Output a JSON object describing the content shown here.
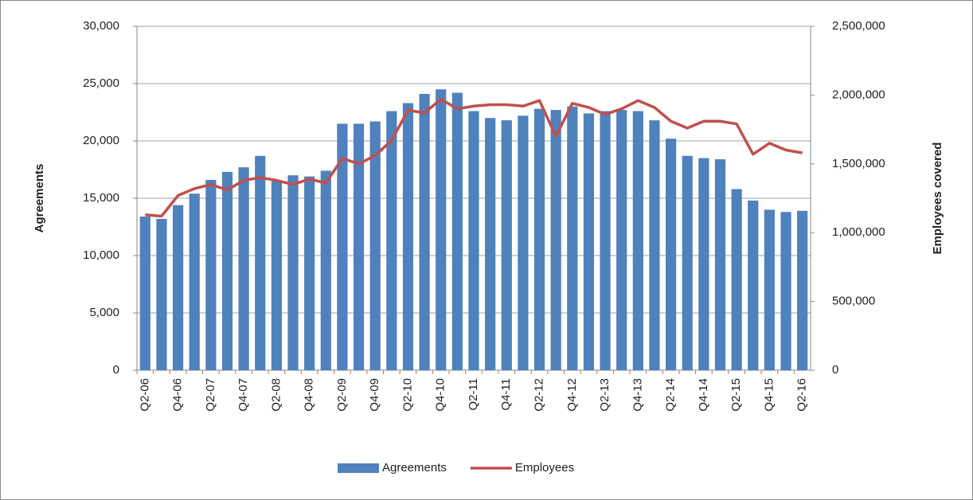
{
  "chart_data": {
    "type": "bar-line",
    "y_axis_label": "Agreements",
    "y2_axis_label": "Employees covered",
    "categories": [
      "Q2-06",
      null,
      "Q4-06",
      null,
      "Q2-07",
      null,
      "Q4-07",
      null,
      "Q2-08",
      null,
      "Q4-08",
      null,
      "Q2-09",
      null,
      "Q4-09",
      null,
      "Q2-10",
      null,
      "Q4-10",
      null,
      "Q2-11",
      null,
      "Q4-11",
      null,
      "Q2-12",
      null,
      "Q4-12",
      null,
      "Q2-13",
      null,
      "Q4-13",
      null,
      "Q2-14",
      null,
      "Q4-14",
      null,
      "Q2-15",
      null,
      "Q4-15",
      null,
      "Q2-16"
    ],
    "series": [
      {
        "name": "Agreements",
        "type": "bar",
        "color": "#4f81bd",
        "values": [
          13400,
          13200,
          14400,
          15400,
          16600,
          17300,
          17700,
          18700,
          16500,
          17000,
          16900,
          17400,
          21500,
          21500,
          21700,
          22600,
          23300,
          24100,
          24500,
          24200,
          22600,
          22000,
          21800,
          22200,
          22800,
          22700,
          23000,
          22400,
          22600,
          22700,
          22600,
          21800,
          20200,
          18700,
          18500,
          18400,
          15800,
          14800,
          14000,
          13800,
          13900
        ]
      },
      {
        "name": "Employees",
        "type": "line",
        "axis": "y2",
        "color": "#c0504d",
        "values": [
          1130000,
          1120000,
          1270000,
          1320000,
          1350000,
          1310000,
          1380000,
          1400000,
          1380000,
          1350000,
          1390000,
          1360000,
          1540000,
          1500000,
          1560000,
          1670000,
          1890000,
          1870000,
          1970000,
          1900000,
          1920000,
          1930000,
          1930000,
          1920000,
          1960000,
          1700000,
          1940000,
          1910000,
          1860000,
          1900000,
          1960000,
          1910000,
          1810000,
          1760000,
          1810000,
          1810000,
          1790000,
          1570000,
          1650000,
          1600000,
          1580000
        ]
      }
    ],
    "ylim": [
      0,
      30000
    ],
    "yticks": [
      0,
      {
        "value": 5000,
        "label": "5,000"
      },
      {
        "value": 10000,
        "label": "10,000"
      },
      {
        "value": 15000,
        "label": "15,000"
      },
      {
        "value": 20000,
        "label": "20,000"
      },
      {
        "value": 25000,
        "label": "25,000"
      },
      {
        "value": 30000,
        "label": "30,000"
      }
    ],
    "y2lim": [
      0,
      2500000
    ],
    "y2ticks": [
      0,
      {
        "value": 500000,
        "label": "500,000"
      },
      {
        "value": 1000000,
        "label": "1,000,000"
      },
      {
        "value": 1500000,
        "label": "1,500,000"
      },
      {
        "value": 2000000,
        "label": "2,000,000"
      },
      {
        "value": 2500000,
        "label": "2,500,000"
      }
    ],
    "grid": true,
    "legend": "bottom"
  }
}
